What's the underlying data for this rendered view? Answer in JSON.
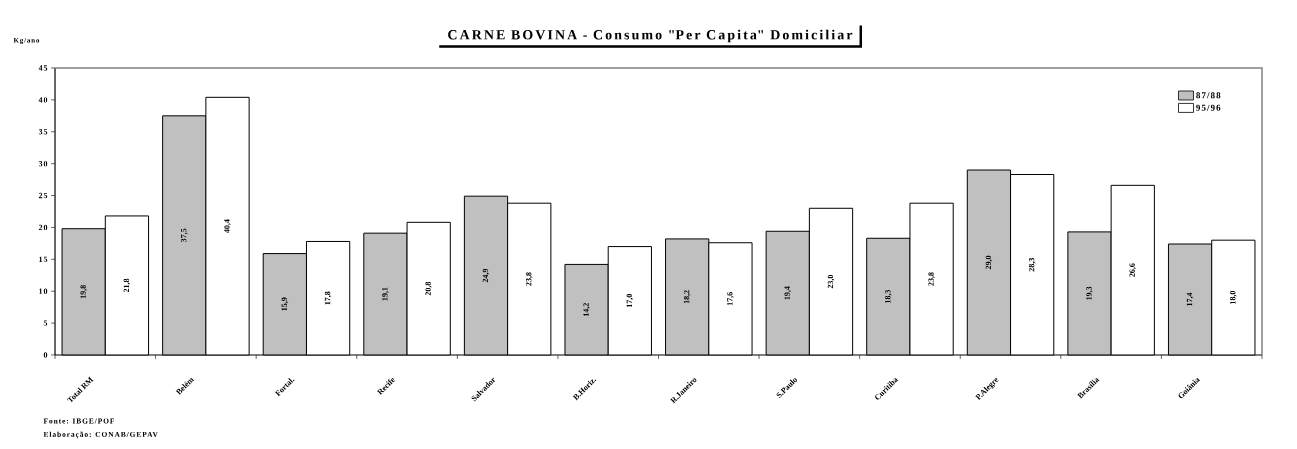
{
  "chart_data": {
    "type": "bar",
    "title": "CARNE BOVINA - Consumo \"Per Capita\" Domiciliar",
    "ylabel": "Kg/ano",
    "categories": [
      "Total RM",
      "Belém",
      "Fortal.",
      "Recife",
      "Salvador",
      "B.Horiz.",
      "R.Janeiro",
      "S.Paulo",
      "Curitiba",
      "P.Alegre",
      "Brasília",
      "Goiânia"
    ],
    "series": [
      {
        "name": "87/88",
        "color": "#c0c0c0",
        "values": [
          19.8,
          37.5,
          15.9,
          19.1,
          24.9,
          14.2,
          18.2,
          19.4,
          18.3,
          29.0,
          19.3,
          17.4
        ],
        "value_labels": [
          "19,8",
          "37,5",
          "15,9",
          "19,1",
          "24,9",
          "14,2",
          "18,2",
          "19,4",
          "18,3",
          "29,0",
          "19,3",
          "17,4"
        ]
      },
      {
        "name": "95/96",
        "color": "#ffffff",
        "values": [
          21.8,
          40.4,
          17.8,
          20.8,
          23.8,
          17.0,
          17.6,
          23.0,
          23.8,
          28.3,
          26.6,
          18.0
        ],
        "value_labels": [
          "21,8",
          "40,4",
          "17,8",
          "20,8",
          "23,8",
          "17,0",
          "17,6",
          "23,0",
          "23,8",
          "28,3",
          "26,6",
          "18,0"
        ]
      }
    ],
    "ylim": [
      0,
      45
    ],
    "yticks": [
      0,
      5,
      10,
      15,
      20,
      25,
      30,
      35,
      40,
      45
    ],
    "legend": "top right",
    "annotations": [
      "Fonte: IBGE/POF",
      "Elaboração: CONAB/GEPAV"
    ]
  }
}
